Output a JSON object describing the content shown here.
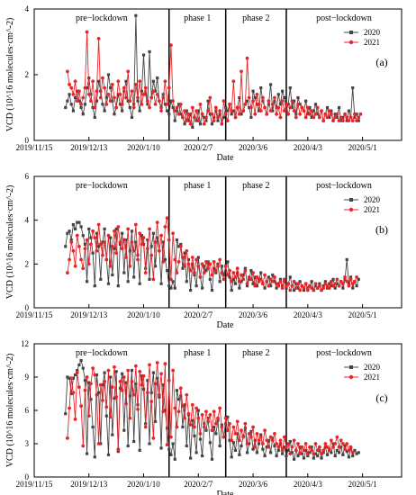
{
  "chart_data": [
    {
      "type": "line",
      "panel_label": "(a)",
      "xlabel": "Date",
      "ylabel": "VCD (10^16 molecules·cm^-2)",
      "ylim": [
        0,
        4
      ],
      "yticks": [
        0,
        2,
        4
      ],
      "x_range": [
        "2019-11-15",
        "2020-05-21"
      ],
      "x_ticks": [
        "2019/11/15",
        "2019/12/13",
        "2020/1/10",
        "2020/2/7",
        "2020/3/6",
        "2020/4/3",
        "2020/5/1"
      ],
      "phase_boundaries": [
        "2020-01-23",
        "2020-02-21",
        "2020-03-23"
      ],
      "phases": [
        "pre−lockdown",
        "phase 1",
        "phase 2",
        "post−lockdown"
      ],
      "legend": {
        "position": "top-right"
      },
      "series": [
        {
          "name": "2020",
          "color": "#444444",
          "marker": "square",
          "start": "2019-12-01",
          "step_days": 1,
          "values": [
            1.0,
            1.2,
            1.4,
            1.1,
            0.9,
            1.3,
            1.5,
            1.2,
            1.0,
            0.8,
            1.1,
            1.6,
            1.9,
            1.4,
            1.0,
            0.7,
            1.2,
            1.8,
            1.5,
            1.1,
            0.9,
            1.3,
            2.0,
            1.6,
            1.2,
            0.8,
            1.0,
            1.4,
            1.1,
            0.9,
            1.5,
            1.8,
            1.2,
            1.0,
            0.7,
            1.1,
            3.8,
            1.2,
            0.9,
            1.5,
            2.6,
            1.4,
            1.1,
            2.7,
            1.3,
            1.8,
            1.5,
            1.9,
            1.2,
            1.0,
            1.4,
            1.1,
            0.9,
            0.8,
            1.2,
            1.0,
            0.6,
            0.9,
            1.1,
            0.8,
            0.7,
            0.5,
            0.9,
            0.6,
            0.8,
            0.4,
            0.7,
            0.6,
            0.9,
            0.5,
            0.8,
            0.7,
            0.6,
            1.2,
            0.8,
            0.5,
            0.7,
            0.9,
            0.6,
            0.8,
            0.5,
            0.7,
            1.0,
            0.9,
            1.1,
            0.8,
            0.9,
            0.7,
            1.0,
            1.3,
            0.8,
            0.9,
            1.1,
            1.2,
            1.0,
            0.7,
            1.5,
            1.3,
            1.1,
            0.9,
            1.6,
            1.2,
            1.0,
            0.8,
            1.1,
            1.7,
            0.9,
            1.2,
            1.0,
            1.4,
            1.1,
            1.5,
            1.3,
            0.9,
            1.1,
            1.6,
            1.0,
            1.2,
            0.8,
            1.3,
            1.1,
            1.0,
            0.9,
            1.2,
            0.8,
            1.0,
            0.7,
            0.9,
            1.1,
            0.8,
            0.7,
            0.9,
            0.6,
            0.8,
            1.0,
            0.7,
            0.9,
            0.6,
            0.8,
            0.7,
            1.0,
            0.6,
            0.7,
            0.8,
            0.6,
            0.9,
            0.7,
            1.6,
            0.7,
            0.8,
            0.6
          ]
        },
        {
          "name": "2021",
          "color": "#e8262a",
          "marker": "circle",
          "start": "2019-12-02",
          "step_days": 1,
          "values": [
            2.1,
            1.7,
            1.6,
            1.4,
            1.8,
            1.2,
            1.5,
            1.1,
            1.3,
            1.6,
            3.3,
            1.4,
            1.2,
            1.8,
            1.0,
            1.5,
            3.1,
            1.3,
            1.9,
            1.6,
            1.1,
            1.4,
            1.2,
            1.7,
            1.3,
            1.0,
            1.8,
            1.4,
            1.1,
            1.6,
            1.3,
            2.1,
            1.2,
            1.5,
            1.0,
            1.7,
            1.3,
            1.8,
            1.1,
            1.4,
            1.6,
            1.2,
            1.0,
            1.3,
            1.5,
            1.1,
            1.4,
            1.2,
            0.9,
            1.3,
            1.8,
            1.1,
            1.6,
            2.9,
            1.2,
            0.9,
            1.0,
            0.8,
            1.1,
            0.7,
            0.9,
            0.6,
            0.8,
            0.5,
            1.0,
            0.7,
            0.9,
            0.6,
            1.1,
            0.8,
            0.5,
            0.7,
            0.9,
            1.3,
            0.8,
            0.6,
            1.0,
            0.7,
            0.9,
            0.5,
            1.2,
            0.8,
            0.6,
            1.1,
            0.9,
            1.8,
            0.7,
            1.0,
            0.8,
            2.1,
            0.9,
            1.1,
            2.5,
            1.3,
            1.0,
            1.2,
            0.8,
            1.4,
            1.1,
            0.9,
            1.3,
            1.0,
            0.8,
            1.2,
            0.9,
            1.1,
            1.3,
            0.8,
            1.0,
            0.7,
            1.2,
            0.9,
            1.1,
            0.8,
            1.0,
            1.2,
            0.9,
            0.7,
            1.1,
            0.8,
            1.0,
            0.9,
            0.7,
            1.0,
            0.8,
            0.9,
            0.7,
            0.8,
            1.0,
            0.7,
            0.9,
            0.6,
            0.8,
            0.7,
            0.9,
            0.8,
            0.6,
            0.7,
            0.8,
            0.6,
            0.7,
            0.6,
            0.8,
            0.7,
            0.6,
            0.7,
            0.6,
            0.8,
            0.6,
            0.7,
            0.8
          ]
        }
      ]
    },
    {
      "type": "line",
      "panel_label": "(b)",
      "xlabel": "Date",
      "ylabel": "VCD (10^16 molecules·cm^-2)",
      "ylim": [
        0,
        6
      ],
      "yticks": [
        0,
        2,
        4,
        6
      ],
      "x_range": [
        "2019-11-15",
        "2020-05-21"
      ],
      "x_ticks": [
        "2019/11/15",
        "2019/12/13",
        "2020/1/10",
        "2020/2/7",
        "2020/3/6",
        "2020/4/3",
        "2020/5/1"
      ],
      "phase_boundaries": [
        "2020-01-23",
        "2020-02-21",
        "2020-03-23"
      ],
      "phases": [
        "pre−lockdown",
        "phase 1",
        "phase 2",
        "post−lockdown"
      ],
      "legend": {
        "position": "top-right"
      },
      "series": [
        {
          "name": "2020",
          "color": "#444444",
          "marker": "square",
          "start": "2019-12-01",
          "step_days": 1,
          "values": [
            2.8,
            3.4,
            3.5,
            3.1,
            3.8,
            3.6,
            3.9,
            3.9,
            3.7,
            3.3,
            2.9,
            1.2,
            3.6,
            3.2,
            2.5,
            1.0,
            3.4,
            2.8,
            1.3,
            3.0,
            3.6,
            2.2,
            1.1,
            3.2,
            1.5,
            2.7,
            3.6,
            1.0,
            2.9,
            3.4,
            1.6,
            3.1,
            1.2,
            2.6,
            3.5,
            1.4,
            3.0,
            2.4,
            1.1,
            3.3,
            2.9,
            1.8,
            3.1,
            1.3,
            2.8,
            3.4,
            1.9,
            3.2,
            2.6,
            1.1,
            3.0,
            2.2,
            1.7,
            1.0,
            0.9,
            1.2,
            0.9,
            3.1,
            2.8,
            2.9,
            1.8,
            2.5,
            1.2,
            2.2,
            0.8,
            2.0,
            1.5,
            1.0,
            2.3,
            1.4,
            0.9,
            1.9,
            1.7,
            2.1,
            1.3,
            0.8,
            1.8,
            1.6,
            2.0,
            1.2,
            1.9,
            1.5,
            1.9,
            2.1,
            1.4,
            0.8,
            1.3,
            1.1,
            1.6,
            0.9,
            1.2,
            1.5,
            1.8,
            1.0,
            1.3,
            1.7,
            1.1,
            1.4,
            1.0,
            1.3,
            1.6,
            1.1,
            0.9,
            1.2,
            1.4,
            1.0,
            1.5,
            1.2,
            0.9,
            1.1,
            1.3,
            1.0,
            1.2,
            0.9,
            1.1,
            1.4,
            1.0,
            0.8,
            1.1,
            0.9,
            1.2,
            1.0,
            0.8,
            1.1,
            0.9,
            1.0,
            1.2,
            0.8,
            1.0,
            0.9,
            1.1,
            0.8,
            1.0,
            1.2,
            0.9,
            1.1,
            1.0,
            1.3,
            0.9,
            1.1,
            1.0,
            1.2,
            0.9,
            1.3,
            2.2,
            1.1,
            1.4,
            0.9,
            1.2,
            1.0,
            1.3
          ]
        },
        {
          "name": "2021",
          "color": "#e8262a",
          "marker": "circle",
          "start": "2019-12-02",
          "step_days": 1,
          "values": [
            1.6,
            2.2,
            3.0,
            2.6,
            1.9,
            3.3,
            2.8,
            2.2,
            1.8,
            2.7,
            3.1,
            2.0,
            2.9,
            3.5,
            3.2,
            2.6,
            3.8,
            2.9,
            2.4,
            3.0,
            2.2,
            3.3,
            1.9,
            2.8,
            3.5,
            2.5,
            3.7,
            3.0,
            2.7,
            3.1,
            2.3,
            3.6,
            1.9,
            3.0,
            2.6,
            3.8,
            2.2,
            3.4,
            2.9,
            3.2,
            1.6,
            2.7,
            3.6,
            2.4,
            1.3,
            3.0,
            3.9,
            2.6,
            3.3,
            2.1,
            3.7,
            4.1,
            3.1,
            1.3,
            3.4,
            2.2,
            1.6,
            2.1,
            2.8,
            2.3,
            1.9,
            2.6,
            2.0,
            1.7,
            2.3,
            1.6,
            2.2,
            1.9,
            1.4,
            2.0,
            1.6,
            2.1,
            1.8,
            2.0,
            1.5,
            2.1,
            1.7,
            1.9,
            2.2,
            1.6,
            1.3,
            1.9,
            1.5,
            1.7,
            1.2,
            1.6,
            1.4,
            1.8,
            1.2,
            1.5,
            1.3,
            1.7,
            1.1,
            1.4,
            1.3,
            1.6,
            1.0,
            1.4,
            1.2,
            1.3,
            1.1,
            1.5,
            1.2,
            1.0,
            1.3,
            1.2,
            1.4,
            1.1,
            1.0,
            1.2,
            0.9,
            1.3,
            1.0,
            1.1,
            0.8,
            1.0,
            1.2,
            0.9,
            1.1,
            0.8,
            1.0,
            0.9,
            1.1,
            0.8,
            1.0,
            0.9,
            0.8,
            1.1,
            0.9,
            1.0,
            0.8,
            0.9,
            1.1,
            1.0,
            0.9,
            1.2,
            1.0,
            1.1,
            1.3,
            1.0,
            1.2,
            1.1,
            1.4,
            1.2,
            1.0,
            1.3,
            1.1,
            1.2,
            1.4
          ]
        }
      ]
    },
    {
      "type": "line",
      "panel_label": "(c)",
      "xlabel": "Date",
      "ylabel": "VCD (10^16 molecules·cm^-2)",
      "ylim": [
        0,
        12
      ],
      "yticks": [
        0,
        3,
        6,
        9,
        12
      ],
      "x_range": [
        "2019-11-15",
        "2020-05-21"
      ],
      "x_ticks": [
        "2019/11/15",
        "2019/12/13",
        "2020/1/10",
        "2020/2/7",
        "2020/3/6",
        "2020/4/3",
        "2020/5/1"
      ],
      "phase_boundaries": [
        "2020-01-23",
        "2020-02-21",
        "2020-03-23"
      ],
      "phases": [
        "pre−lockdown",
        "phase 1",
        "phase 2",
        "post−lockdown"
      ],
      "legend": {
        "position": "top-right"
      },
      "series": [
        {
          "name": "2020",
          "color": "#444444",
          "marker": "square",
          "start": "2019-12-01",
          "step_days": 1,
          "values": [
            5.7,
            9.0,
            8.9,
            7.5,
            8.9,
            9.2,
            9.6,
            10.1,
            10.5,
            9.8,
            8.7,
            2.1,
            8.5,
            7.0,
            4.5,
            1.8,
            9.2,
            7.6,
            3.0,
            8.3,
            9.4,
            5.5,
            2.0,
            9.0,
            3.8,
            7.1,
            9.5,
            2.3,
            8.0,
            9.3,
            4.2,
            8.5,
            2.8,
            7.3,
            9.6,
            3.2,
            8.4,
            6.5,
            2.4,
            9.1,
            7.9,
            4.8,
            8.7,
            3.0,
            7.6,
            9.4,
            5.0,
            8.9,
            7.2,
            2.6,
            8.3,
            6.0,
            4.4,
            2.5,
            2.0,
            3.0,
            1.6,
            7.8,
            7.0,
            7.3,
            4.5,
            6.5,
            2.8,
            5.6,
            1.7,
            5.1,
            3.7,
            2.2,
            6.0,
            3.4,
            1.9,
            4.8,
            4.2,
            5.3,
            3.1,
            1.6,
            4.5,
            3.9,
            5.1,
            2.8,
            4.7,
            3.6,
            4.8,
            5.4,
            3.3,
            1.8,
            3.1,
            2.4,
            3.9,
            2.0,
            2.8,
            3.7,
            4.4,
            2.2,
            3.0,
            4.1,
            2.5,
            3.3,
            2.2,
            3.0,
            3.8,
            2.5,
            1.9,
            2.7,
            3.3,
            2.2,
            3.5,
            2.8,
            1.9,
            2.4,
            3.0,
            2.1,
            2.7,
            1.9,
            2.4,
            3.2,
            2.2,
            1.6,
            2.4,
            1.9,
            2.7,
            2.1,
            1.7,
            2.4,
            1.9,
            2.2,
            2.7,
            1.7,
            2.1,
            1.9,
            2.4,
            1.7,
            2.2,
            2.7,
            2.0,
            2.5,
            2.2,
            3.0,
            1.9,
            2.4,
            2.2,
            2.7,
            2.0,
            2.8,
            2.3,
            1.8,
            2.6,
            1.9,
            2.4,
            2.1,
            2.2
          ]
        },
        {
          "name": "2021",
          "color": "#e8262a",
          "marker": "circle",
          "start": "2019-12-02",
          "step_days": 1,
          "values": [
            3.5,
            6.2,
            8.9,
            7.6,
            5.2,
            9.4,
            8.1,
            6.4,
            2.8,
            7.8,
            9.0,
            5.5,
            8.4,
            9.8,
            9.2,
            7.4,
            3.0,
            8.3,
            6.9,
            8.6,
            6.3,
            9.6,
            5.4,
            8.1,
            9.9,
            7.2,
            2.5,
            8.6,
            7.8,
            9.0,
            6.6,
            9.6,
            5.3,
            8.6,
            7.4,
            10.0,
            6.1,
            9.5,
            8.3,
            9.1,
            4.5,
            7.6,
            10.1,
            6.8,
            3.5,
            8.4,
            10.3,
            7.4,
            9.3,
            5.9,
            10.2,
            2.9,
            8.7,
            3.6,
            9.6,
            6.2,
            4.5,
            5.9,
            8.0,
            6.4,
            5.3,
            7.4,
            5.7,
            4.7,
            6.5,
            4.5,
            6.2,
            5.3,
            3.9,
            5.6,
            4.5,
            5.9,
            5.0,
            5.6,
            4.2,
            5.9,
            4.8,
            5.3,
            6.2,
            4.5,
            3.6,
            5.3,
            4.2,
            4.8,
            3.3,
            4.5,
            3.9,
            5.0,
            3.3,
            4.2,
            3.6,
            4.8,
            3.0,
            3.9,
            3.6,
            4.5,
            2.7,
            3.9,
            3.3,
            3.6,
            3.0,
            4.2,
            3.3,
            2.7,
            3.6,
            3.3,
            3.9,
            3.0,
            2.7,
            3.3,
            2.4,
            3.6,
            2.7,
            3.0,
            2.1,
            2.7,
            3.3,
            2.4,
            3.0,
            2.1,
            2.7,
            2.4,
            3.0,
            2.1,
            2.7,
            2.4,
            2.1,
            3.0,
            2.4,
            2.7,
            2.1,
            2.4,
            3.0,
            2.7,
            2.4,
            3.3,
            2.7,
            3.0,
            3.6,
            2.7,
            3.3,
            3.0,
            2.5,
            3.0,
            2.4,
            2.7,
            2.2
          ]
        }
      ]
    }
  ]
}
